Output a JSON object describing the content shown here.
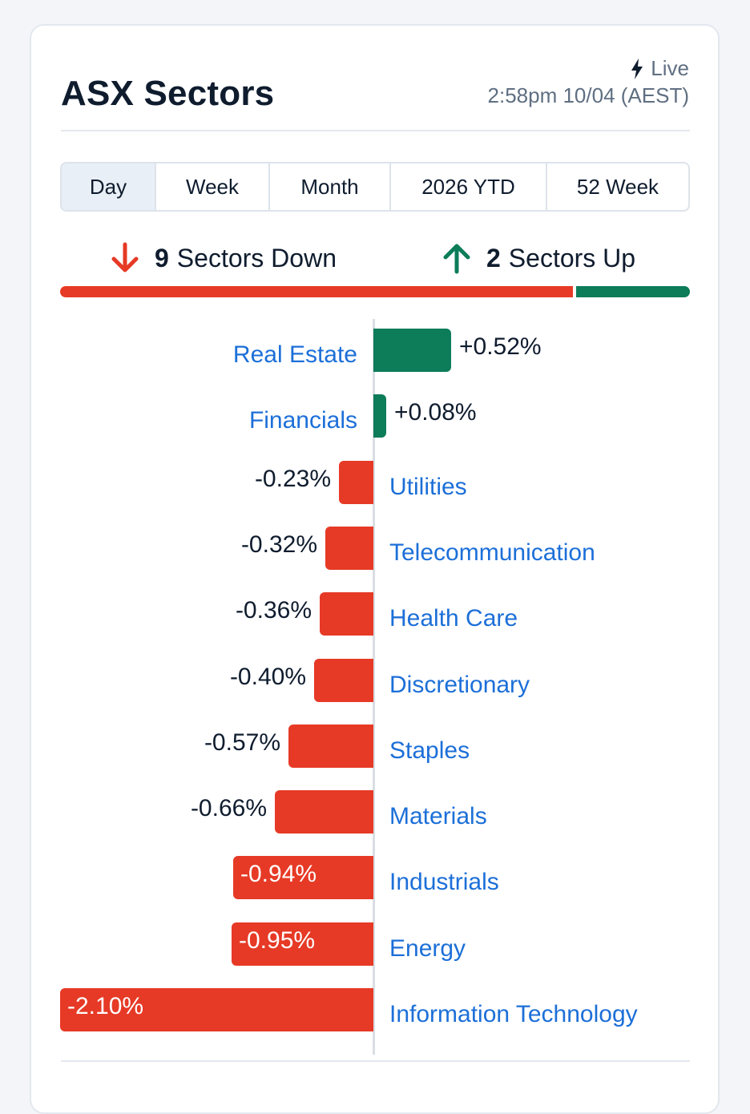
{
  "header": {
    "title": "ASX Sectors",
    "live_label": "Live",
    "timestamp": "2:58pm 10/04 (AEST)"
  },
  "tabs": [
    {
      "label": "Day",
      "active": true
    },
    {
      "label": "Week",
      "active": false
    },
    {
      "label": "Month",
      "active": false
    },
    {
      "label": "2026 YTD",
      "active": false
    },
    {
      "label": "52 Week",
      "active": false
    }
  ],
  "summary": {
    "down_count": "9",
    "down_label": "Sectors Down",
    "up_count": "2",
    "up_label": "Sectors Up"
  },
  "colors": {
    "down": "#e63a26",
    "up": "#0c7c59",
    "link": "#1c6fd8"
  },
  "icons": {
    "down": "arrow-down-icon",
    "up": "arrow-up-icon",
    "live": "lightning-bolt-icon"
  },
  "chart_data": {
    "type": "bar",
    "orientation": "horizontal",
    "categories": [
      "Real Estate",
      "Financials",
      "Utilities",
      "Telecommunication",
      "Health Care",
      "Discretionary",
      "Staples",
      "Materials",
      "Industrials",
      "Energy",
      "Information Technology"
    ],
    "values": [
      0.52,
      0.08,
      -0.23,
      -0.32,
      -0.36,
      -0.4,
      -0.57,
      -0.66,
      -0.94,
      -0.95,
      -2.1
    ],
    "labels": [
      "+0.52%",
      "+0.08%",
      "-0.23%",
      "-0.32%",
      "-0.36%",
      "-0.40%",
      "-0.57%",
      "-0.66%",
      "-0.94%",
      "-0.95%",
      "-2.10%"
    ]
  }
}
